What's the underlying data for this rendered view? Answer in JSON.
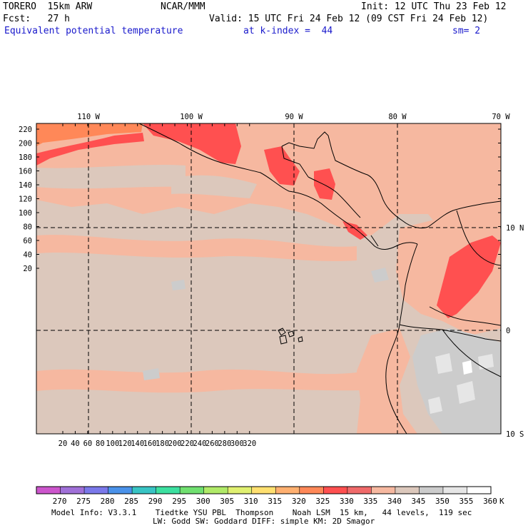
{
  "header": {
    "model": "TORERO  15km ARW",
    "center": "NCAR/MMM",
    "init": "Init: 12 UTC Thu 23 Feb 12",
    "forecast": "Fcst:   27 h",
    "valid": "Valid: 15 UTC Fri 24 Feb 12 (09 CST Fri 24 Feb 12)",
    "field": "Equivalent potential temperature",
    "level": "at k-index =  44",
    "smoothing": "sm= 2"
  },
  "map": {
    "top_lon_labels": [
      "110 W",
      "100 W",
      "90 W",
      "80 W",
      "70 W"
    ],
    "right_lat_labels": [
      "10 N",
      "0",
      "10 S"
    ],
    "y_grid_ticks": [
      "220",
      "200",
      "180",
      "160",
      "140",
      "120",
      "100",
      "80",
      "60",
      "40",
      "20"
    ],
    "x_grid_ticks": [
      "20",
      "40",
      "60",
      "80",
      "100",
      "120",
      "140",
      "160",
      "180",
      "200",
      "220",
      "240",
      "260",
      "280",
      "300",
      "320"
    ]
  },
  "colorbar": {
    "labels": [
      "270",
      "275",
      "280",
      "285",
      "290",
      "295",
      "300",
      "305",
      "310",
      "315",
      "320",
      "325",
      "330",
      "335",
      "340",
      "345",
      "350",
      "355",
      "360"
    ],
    "unit": "K",
    "colors": [
      "#cc55cc",
      "#a070d8",
      "#7a78ea",
      "#4a92ea",
      "#38c4c4",
      "#3ce0a0",
      "#70e070",
      "#b0ea68",
      "#e0f070",
      "#ffe070",
      "#ffb070",
      "#ff8858",
      "#ff5050",
      "#f06a6a",
      "#f6b8a0",
      "#dcc8bc",
      "#cccccc",
      "#e6e6e6",
      "#ffffff"
    ]
  },
  "footer": {
    "line1": "Model Info: V3.3.1    Tiedtke YSU PBL  Thompson    Noah LSM  15 km,   44 levels,  119 sec",
    "line2": "LW: Godd SW: Goddard DIFF: simple KM: 2D Smagor"
  }
}
